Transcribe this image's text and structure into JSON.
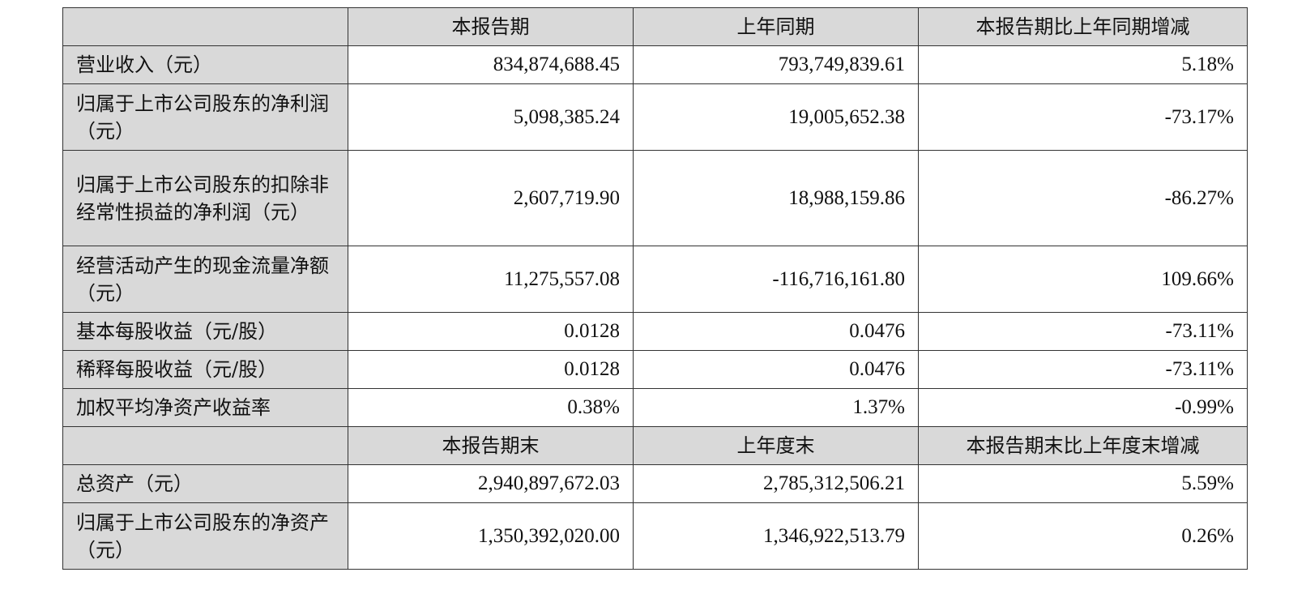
{
  "header_period": {
    "col_current": "本报告期",
    "col_prior": "上年同期",
    "col_change": "本报告期比上年同期增减"
  },
  "period_rows": [
    {
      "label": "营业收入（元）",
      "current": "834,874,688.45",
      "prior": "793,749,839.61",
      "change": "5.18%"
    },
    {
      "label": "归属于上市公司股东的净利润（元）",
      "current": "5,098,385.24",
      "prior": "19,005,652.38",
      "change": "-73.17%"
    },
    {
      "label": "归属于上市公司股东的扣除非经常性损益的净利润（元）",
      "current": "2,607,719.90",
      "prior": "18,988,159.86",
      "change": "-86.27%"
    },
    {
      "label": "经营活动产生的现金流量净额（元）",
      "current": "11,275,557.08",
      "prior": "-116,716,161.80",
      "change": "109.66%"
    },
    {
      "label": "基本每股收益（元/股）",
      "current": "0.0128",
      "prior": "0.0476",
      "change": "-73.11%"
    },
    {
      "label": "稀释每股收益（元/股）",
      "current": "0.0128",
      "prior": "0.0476",
      "change": "-73.11%"
    },
    {
      "label": "加权平均净资产收益率",
      "current": "0.38%",
      "prior": "1.37%",
      "change": "-0.99%"
    }
  ],
  "header_balance": {
    "col_current": "本报告期末",
    "col_prior": "上年度末",
    "col_change": "本报告期末比上年度末增减"
  },
  "balance_rows": [
    {
      "label": "总资产（元）",
      "current": "2,940,897,672.03",
      "prior": "2,785,312,506.21",
      "change": "5.59%"
    },
    {
      "label": "归属于上市公司股东的净资产（元）",
      "current": "1,350,392,020.00",
      "prior": "1,346,922,513.79",
      "change": "0.26%"
    }
  ]
}
